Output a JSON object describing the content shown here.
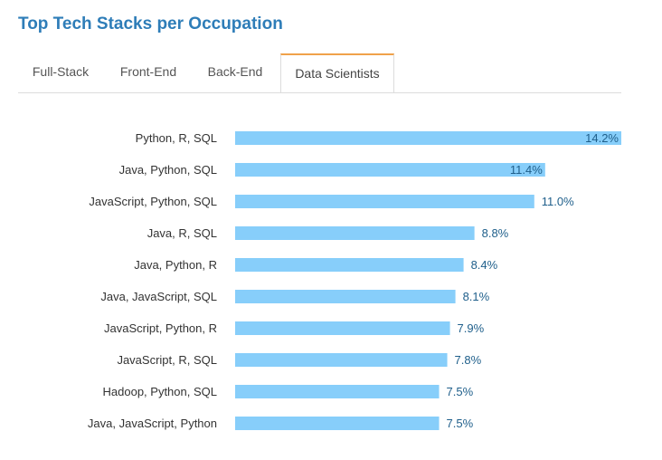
{
  "page": {
    "title": "Top Tech Stacks per Occupation"
  },
  "tabs": [
    {
      "label": "Full-Stack",
      "active": false
    },
    {
      "label": "Front-End",
      "active": false
    },
    {
      "label": "Back-End",
      "active": false
    },
    {
      "label": "Data Scientists",
      "active": true
    }
  ],
  "colors": {
    "bar": "#87cefa",
    "value_label": "#1f5f8b",
    "category_label": "#333333",
    "title": "#2e7db8",
    "tab_accent": "#f0a14a"
  },
  "chart_data": {
    "type": "bar",
    "orientation": "horizontal",
    "categories": [
      "Python, R, SQL",
      "Java, Python, SQL",
      "JavaScript, Python, SQL",
      "Java, R, SQL",
      "Java, Python, R",
      "Java, JavaScript, SQL",
      "JavaScript, Python, R",
      "JavaScript, R, SQL",
      "Hadoop, Python, SQL",
      "Java, JavaScript, Python"
    ],
    "values": [
      14.2,
      11.4,
      11.0,
      8.8,
      8.4,
      8.1,
      7.9,
      7.8,
      7.5,
      7.5
    ],
    "value_labels": [
      "14.2%",
      "11.4%",
      "11.0%",
      "8.8%",
      "8.4%",
      "8.1%",
      "7.9%",
      "7.8%",
      "7.5%",
      "7.5%"
    ],
    "unit": "%",
    "xlim": [
      0,
      14.2
    ],
    "grid": false,
    "legend": "none",
    "inside_label_for_max": true
  }
}
